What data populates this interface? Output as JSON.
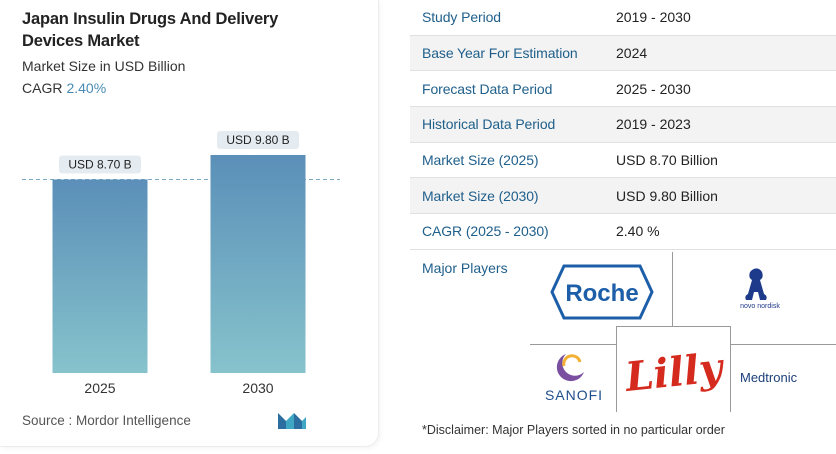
{
  "chart": {
    "title": "Japan Insulin Drugs And Delivery Devices Market",
    "subtitle": "Market Size in USD Billion",
    "cagr_label": "CAGR",
    "cagr_value": "2.40%",
    "source": "Source :  Mordor Intelligence"
  },
  "chart_data": {
    "type": "bar",
    "categories": [
      "2025",
      "2030"
    ],
    "values": [
      8.7,
      9.8
    ],
    "data_labels": [
      "USD 8.70 B",
      "USD 9.80 B"
    ],
    "reference_line": 8.7,
    "ylim": [
      0,
      9.8
    ],
    "title": "Japan Insulin Drugs And Delivery Devices Market",
    "ylabel": "Market Size in USD Billion",
    "colors": {
      "bar_top": "#5b8fb8",
      "bar_bottom": "#86c3cc",
      "label_bg": "#e4ecf2",
      "dash": "#7aa7c2"
    }
  },
  "table": {
    "rows": [
      {
        "label": "Study Period",
        "value": "2019 - 2030"
      },
      {
        "label": "Base Year For Estimation",
        "value": "2024"
      },
      {
        "label": "Forecast Data Period",
        "value": "2025 - 2030"
      },
      {
        "label": "Historical Data Period",
        "value": "2019 - 2023"
      },
      {
        "label": "Market Size (2025)",
        "value": "USD 8.70 Billion"
      },
      {
        "label": "Market Size (2030)",
        "value": "USD 9.80 Billion"
      },
      {
        "label": "CAGR (2025 - 2030)",
        "value": "2.40 %"
      }
    ]
  },
  "players": {
    "title": "Major Players",
    "logos": {
      "roche": "Roche",
      "novo": "novo nordisk",
      "sanofi": "SANOFI",
      "lilly": "Lilly",
      "medtronic": "Medtronic"
    },
    "disclaimer": "*Disclaimer: Major Players sorted in no particular order"
  }
}
